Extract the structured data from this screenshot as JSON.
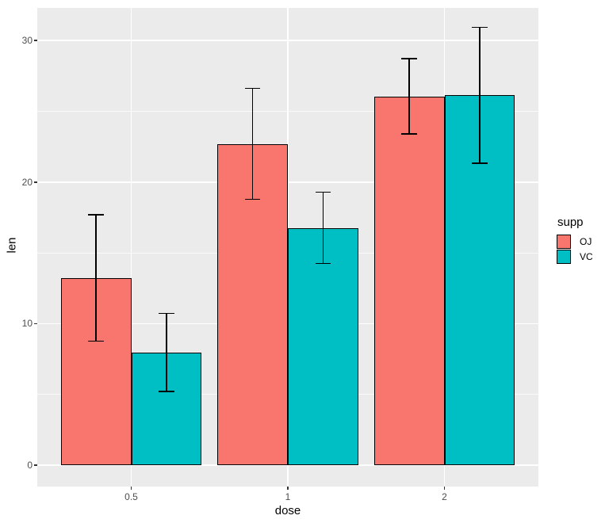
{
  "chart_data": {
    "type": "bar",
    "title": "",
    "xlabel": "dose",
    "ylabel": "len",
    "categories": [
      "0.5",
      "1",
      "2"
    ],
    "series": [
      {
        "name": "OJ",
        "color": "#F8766D",
        "values": [
          13.23,
          22.7,
          26.06
        ],
        "error_low": [
          8.77,
          18.79,
          23.4
        ],
        "error_high": [
          17.69,
          26.61,
          28.72
        ]
      },
      {
        "name": "VC",
        "color": "#00BFC4",
        "values": [
          7.98,
          16.77,
          26.14
        ],
        "error_low": [
          5.23,
          14.25,
          21.34
        ],
        "error_high": [
          10.73,
          19.29,
          30.94
        ]
      }
    ],
    "y_axis": {
      "ticks": [
        0,
        10,
        20,
        30
      ],
      "minor_ticks": [
        5,
        15,
        25
      ],
      "range": [
        -1.5,
        32.3
      ]
    },
    "grid": "major+minor",
    "legend_position": "right"
  },
  "legend": {
    "title": "supp",
    "entries": [
      {
        "label": "OJ",
        "color": "#F8766D"
      },
      {
        "label": "VC",
        "color": "#00BFC4"
      }
    ]
  },
  "theme": {
    "panel_background": "#EBEBEB",
    "plot_background": "#FFFFFF",
    "grid_color": "#FFFFFF",
    "bar_outline": "#000000",
    "errorbar_color": "#000000",
    "tick_label_color": "#4D4D4D",
    "axis_title_color": "#000000",
    "tick_mark_color": "#333333"
  }
}
